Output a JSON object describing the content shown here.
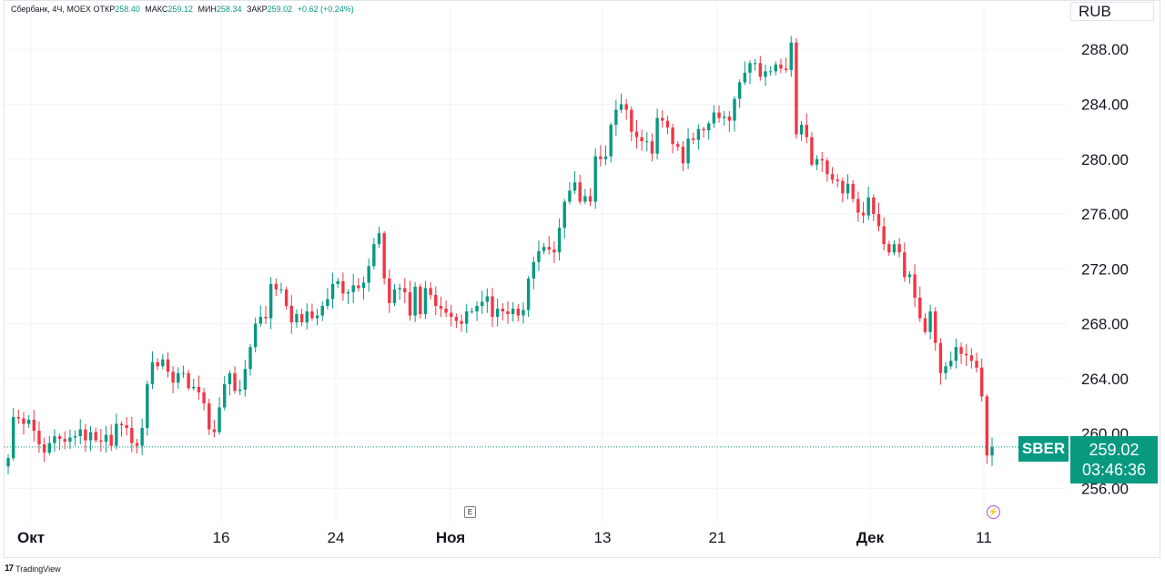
{
  "legend": {
    "symbol_info": "Сбербанк, 4Ч, MOEX",
    "open_label": "ОТКР",
    "open": "258.40",
    "high_label": "МАКС",
    "high": "259.12",
    "low_label": "МИН",
    "low": "258.34",
    "close_label": "ЗАКР",
    "close": "259.02",
    "change": "+0.62 (+0.24%)"
  },
  "currency": "RUB",
  "symbol_tag": "SBER",
  "last_price": "259.02",
  "countdown": "03:46:36",
  "event_badge": "E",
  "branding": "TradingView",
  "colors": {
    "up": "#089981",
    "down": "#f23645",
    "accent": "#089981",
    "grid": "#f0f3fa"
  },
  "icons": [
    "tradingview-logo-icon",
    "earnings-e-icon",
    "flash-icon"
  ],
  "chart_data": {
    "type": "candlestick",
    "title": "",
    "ylim": [
      253.5,
      291.6
    ],
    "y_ticks": [
      "256.00",
      "260.00",
      "264.00",
      "268.00",
      "272.00",
      "276.00",
      "280.00",
      "284.00",
      "288.00"
    ],
    "x_ticks": [
      {
        "label": "Окт",
        "major": true
      },
      {
        "label": "16",
        "major": false
      },
      {
        "label": "24",
        "major": false
      },
      {
        "label": "Ноя",
        "major": true
      },
      {
        "label": "13",
        "major": false
      },
      {
        "label": "21",
        "major": false
      },
      {
        "label": "Дек",
        "major": true
      },
      {
        "label": "11",
        "major": false
      }
    ],
    "last_price": 259.02,
    "grid": true,
    "legend": "top-left",
    "closes": [
      258.2,
      261.2,
      261.1,
      260.7,
      261.0,
      260.2,
      259.2,
      258.6,
      259.3,
      259.8,
      259.6,
      259.4,
      259.7,
      259.8,
      260.3,
      259.5,
      260.1,
      259.5,
      259.4,
      259.9,
      259.1,
      260.7,
      260.6,
      260.4,
      259.3,
      259.1,
      260.4,
      263.6,
      265.2,
      264.9,
      265.4,
      264.5,
      263.7,
      264.4,
      264.4,
      263.3,
      263.4,
      263.0,
      262.2,
      260.3,
      260.1,
      261.9,
      263.6,
      264.4,
      263.1,
      263.2,
      264.7,
      266.3,
      268.0,
      268.5,
      268.4,
      270.9,
      270.5,
      270.5,
      269.3,
      268.1,
      268.7,
      268.1,
      268.9,
      268.4,
      268.6,
      269.3,
      269.8,
      270.9,
      271.1,
      270.2,
      270.3,
      270.8,
      270.6,
      271.0,
      272.2,
      273.8,
      274.6,
      271.3,
      269.5,
      270.5,
      270.6,
      270.3,
      268.6,
      270.7,
      268.7,
      270.6,
      270.1,
      269.3,
      269.1,
      268.8,
      268.5,
      268.2,
      268.0,
      268.9,
      268.9,
      269.3,
      269.6,
      270.0,
      268.5,
      269.1,
      268.9,
      268.7,
      269.1,
      268.6,
      269.0,
      271.3,
      272.5,
      273.3,
      273.6,
      273.4,
      273.2,
      275.0,
      276.9,
      277.7,
      278.3,
      276.9,
      277.3,
      276.9,
      280.2,
      280.0,
      280.2,
      282.5,
      283.6,
      284.0,
      283.6,
      282.0,
      281.6,
      281.3,
      281.3,
      280.4,
      283.0,
      282.8,
      282.3,
      281.1,
      280.9,
      279.7,
      281.5,
      281.4,
      282.2,
      282.1,
      282.6,
      283.4,
      283.0,
      283.1,
      282.8,
      284.4,
      285.6,
      286.3,
      287.0,
      287.0,
      286.0,
      286.4,
      286.4,
      286.9,
      286.6,
      286.5,
      288.5,
      281.8,
      282.5,
      281.6,
      279.6,
      280.0,
      279.9,
      278.9,
      278.5,
      278.4,
      277.5,
      278.2,
      277.1,
      276.1,
      275.9,
      277.2,
      276.0,
      275.1,
      273.8,
      273.2,
      273.8,
      273.2,
      271.4,
      271.6,
      269.9,
      268.4,
      267.4,
      268.9,
      266.6,
      264.4,
      264.9,
      265.3,
      266.3,
      265.8,
      265.7,
      265.3,
      264.8,
      262.7,
      258.4,
      259.0
    ]
  }
}
